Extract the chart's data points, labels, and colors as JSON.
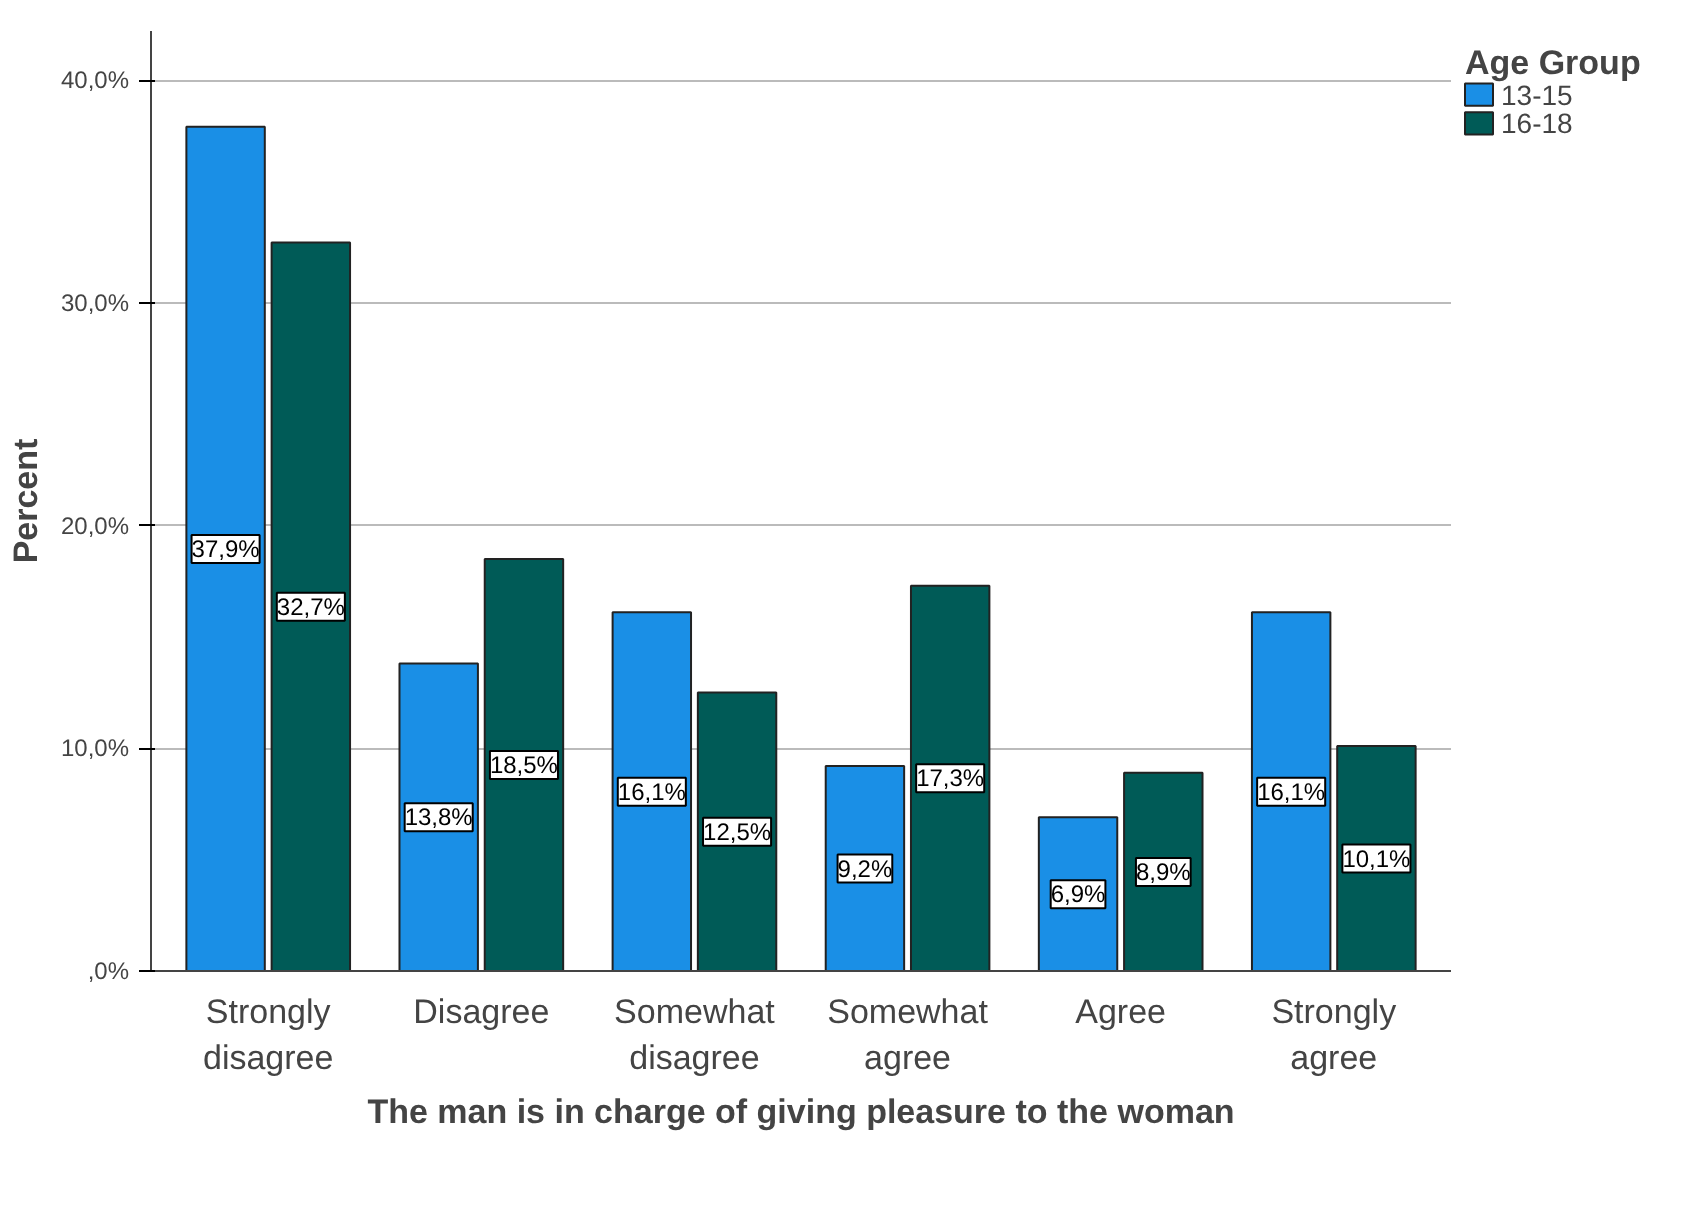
{
  "chart_data": {
    "type": "bar",
    "xlabel": "The man is in charge of giving pleasure to the woman",
    "ylabel": "Percent",
    "legend_title": "Age Group",
    "legend": "top right",
    "categories": [
      "Strongly disagree",
      "Disagree",
      "Somewhat disagree",
      "Somewhat agree",
      "Agree",
      "Strongly agree"
    ],
    "series": [
      {
        "name": "13-15",
        "color": "#1a8fe6",
        "values": [
          37.9,
          13.8,
          16.1,
          9.2,
          6.9,
          16.1
        ],
        "value_labels": [
          "37,9%",
          "13,8%",
          "16,1%",
          "9,2%",
          "6,9%",
          "16,1%"
        ]
      },
      {
        "name": "16-18",
        "color": "#005b57",
        "values": [
          32.7,
          18.5,
          12.5,
          17.3,
          8.9,
          10.1
        ],
        "value_labels": [
          "32,7%",
          "18,5%",
          "12,5%",
          "17,3%",
          "8,9%",
          "10,1%"
        ]
      }
    ],
    "ylim": [
      0,
      42.2
    ],
    "yticks": [
      {
        "value": 0,
        "label": ",0%"
      },
      {
        "value": 10,
        "label": "10,0%"
      },
      {
        "value": 20,
        "label": "20,0%"
      },
      {
        "value": 30,
        "label": "30,0%"
      },
      {
        "value": 40,
        "label": "40,0%"
      }
    ],
    "grid": "y"
  }
}
